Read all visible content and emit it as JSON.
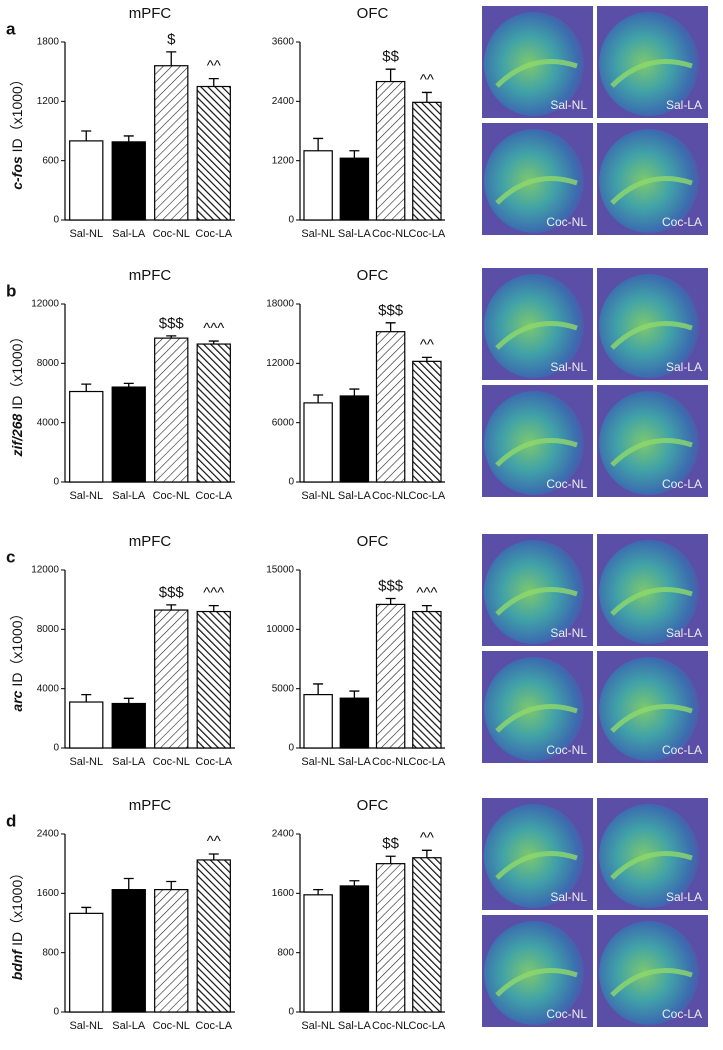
{
  "chart_data": [
    {
      "type": "bar",
      "title": "mPFC",
      "panel": "a",
      "ylabel_gene": "c-fos",
      "ylabel": "ID（x1000）",
      "categories": [
        "Sal-NL",
        "Sal-LA",
        "Coc-NL",
        "Coc-LA"
      ],
      "values": [
        800,
        790,
        1560,
        1350
      ],
      "errors": [
        100,
        60,
        140,
        80
      ],
      "annotations": [
        null,
        null,
        "$",
        "^^"
      ],
      "fills": [
        "#ffffff",
        "#000000",
        "hatch-light",
        "hatch-dark"
      ],
      "ylim": [
        0,
        1800
      ],
      "yticks": [
        0,
        600,
        1200,
        1800
      ]
    },
    {
      "type": "bar",
      "title": "OFC",
      "categories": [
        "Sal-NL",
        "Sal-LA",
        "Coc-NL",
        "Coc-LA"
      ],
      "values": [
        1400,
        1250,
        2800,
        2380
      ],
      "errors": [
        250,
        150,
        250,
        200
      ],
      "annotations": [
        null,
        null,
        "$$",
        "^^"
      ],
      "fills": [
        "#ffffff",
        "#000000",
        "hatch-light",
        "hatch-dark"
      ],
      "ylim": [
        0,
        3600
      ],
      "yticks": [
        0,
        1200,
        2400,
        3600
      ]
    },
    {
      "type": "bar",
      "title": "mPFC",
      "panel": "b",
      "ylabel_gene": "zif/268",
      "ylabel": "ID（x1000）",
      "categories": [
        "Sal-NL",
        "Sal-LA",
        "Coc-NL",
        "Coc-LA"
      ],
      "values": [
        6100,
        6400,
        9700,
        9300
      ],
      "errors": [
        500,
        250,
        150,
        200
      ],
      "annotations": [
        null,
        null,
        "$$$",
        "^^^"
      ],
      "fills": [
        "#ffffff",
        "#000000",
        "hatch-light",
        "hatch-dark"
      ],
      "ylim": [
        0,
        12000
      ],
      "yticks": [
        0,
        4000,
        8000,
        12000
      ]
    },
    {
      "type": "bar",
      "title": "OFC",
      "categories": [
        "Sal-NL",
        "Sal-LA",
        "Coc-NL",
        "Coc-LA"
      ],
      "values": [
        8000,
        8700,
        15200,
        12200
      ],
      "errors": [
        800,
        700,
        900,
        400
      ],
      "annotations": [
        null,
        null,
        "$$$",
        "^^"
      ],
      "fills": [
        "#ffffff",
        "#000000",
        "hatch-light",
        "hatch-dark"
      ],
      "ylim": [
        0,
        18000
      ],
      "yticks": [
        0,
        6000,
        12000,
        18000
      ]
    },
    {
      "type": "bar",
      "title": "mPFC",
      "panel": "c",
      "ylabel_gene": "arc",
      "ylabel": "ID（x1000）",
      "categories": [
        "Sal-NL",
        "Sal-LA",
        "Coc-NL",
        "Coc-LA"
      ],
      "values": [
        3100,
        3000,
        9300,
        9200
      ],
      "errors": [
        500,
        350,
        350,
        400
      ],
      "annotations": [
        null,
        null,
        "$$$",
        "^^^"
      ],
      "fills": [
        "#ffffff",
        "#000000",
        "hatch-light",
        "hatch-dark"
      ],
      "ylim": [
        0,
        12000
      ],
      "yticks": [
        0,
        4000,
        8000,
        12000
      ]
    },
    {
      "type": "bar",
      "title": "OFC",
      "categories": [
        "Sal-NL",
        "Sal-LA",
        "Coc-NL",
        "Coc-LA"
      ],
      "values": [
        4500,
        4200,
        12100,
        11500
      ],
      "errors": [
        900,
        600,
        500,
        500
      ],
      "annotations": [
        null,
        null,
        "$$$",
        "^^^"
      ],
      "fills": [
        "#ffffff",
        "#000000",
        "hatch-light",
        "hatch-dark"
      ],
      "ylim": [
        0,
        15000
      ],
      "yticks": [
        0,
        5000,
        10000,
        15000
      ]
    },
    {
      "type": "bar",
      "title": "mPFC",
      "panel": "d",
      "ylabel_gene": "bdnf",
      "ylabel": "ID（x1000）",
      "categories": [
        "Sal-NL",
        "Sal-LA",
        "Coc-NL",
        "Coc-LA"
      ],
      "values": [
        1330,
        1650,
        1650,
        2050
      ],
      "errors": [
        80,
        150,
        110,
        80
      ],
      "annotations": [
        null,
        null,
        null,
        "^^"
      ],
      "fills": [
        "#ffffff",
        "#000000",
        "hatch-light",
        "hatch-dark"
      ],
      "ylim": [
        0,
        2400
      ],
      "yticks": [
        0,
        800,
        1600,
        2400
      ]
    },
    {
      "type": "bar",
      "title": "OFC",
      "categories": [
        "Sal-NL",
        "Sal-LA",
        "Coc-NL",
        "Coc-LA"
      ],
      "values": [
        1580,
        1700,
        2000,
        2080
      ],
      "errors": [
        70,
        70,
        100,
        100
      ],
      "annotations": [
        null,
        null,
        "$$",
        "^^"
      ],
      "fills": [
        "#ffffff",
        "#000000",
        "hatch-light",
        "hatch-dark"
      ],
      "ylim": [
        0,
        2400
      ],
      "yticks": [
        0,
        800,
        1600,
        2400
      ]
    }
  ],
  "image_labels": [
    [
      "Sal-NL",
      "Sal-LA",
      "Coc-NL",
      "Coc-LA"
    ],
    [
      "Sal-NL",
      "Sal-LA",
      "Coc-NL",
      "Coc-LA"
    ],
    [
      "Sal-NL",
      "Sal-LA",
      "Coc-NL",
      "Coc-LA"
    ],
    [
      "Sal-NL",
      "Sal-LA",
      "Coc-NL",
      "Coc-LA"
    ]
  ]
}
